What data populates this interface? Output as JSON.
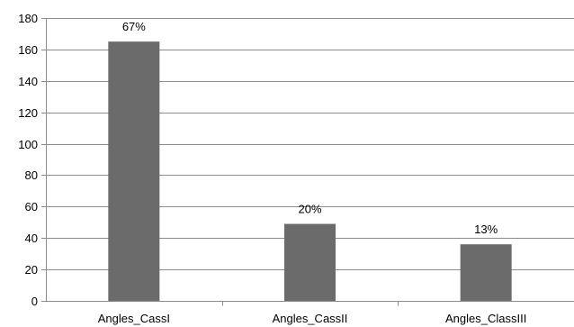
{
  "chart_data": {
    "type": "bar",
    "title": "",
    "xlabel": "",
    "ylabel": "",
    "categories": [
      "Angles_CassI",
      "Angles_CassII",
      "Angles_ClassIII"
    ],
    "values": [
      165,
      49,
      36
    ],
    "data_labels": [
      "67%",
      "20%",
      "13%"
    ],
    "ylim": [
      0,
      180
    ],
    "yticks": [
      0,
      20,
      40,
      60,
      80,
      100,
      120,
      140,
      160,
      180
    ],
    "grid": true,
    "legend": "none",
    "colors": {
      "bar": "#6b6b6b",
      "grid": "#8c8c8c"
    }
  }
}
